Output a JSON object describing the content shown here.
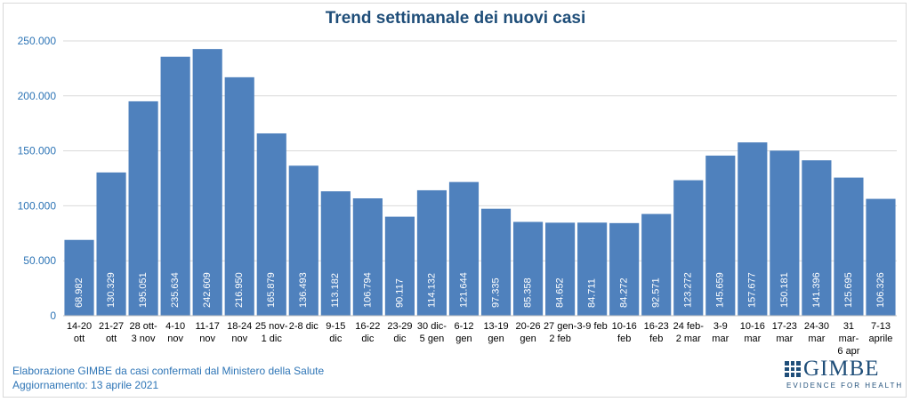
{
  "chart_data": {
    "type": "bar",
    "title": "Trend settimanale dei nuovi casi",
    "xlabel": "",
    "ylabel": "",
    "ylim": [
      0,
      250000
    ],
    "y_ticks": [
      "0",
      "50.000",
      "100.000",
      "150.000",
      "200.000",
      "250.000"
    ],
    "grid": true,
    "bar_color": "#4f81bd",
    "categories": [
      [
        "14-20",
        "ott"
      ],
      [
        "21-27",
        "ott"
      ],
      [
        "28 ott-",
        "3 nov"
      ],
      [
        "4-10",
        "nov"
      ],
      [
        "11-17",
        "nov"
      ],
      [
        "18-24",
        "nov"
      ],
      [
        "25 nov-",
        "1 dic"
      ],
      [
        "2-8 dic"
      ],
      [
        "9-15",
        "dic"
      ],
      [
        "16-22",
        "dic"
      ],
      [
        "23-29",
        "dic"
      ],
      [
        "30 dic-",
        "5 gen"
      ],
      [
        "6-12",
        "gen"
      ],
      [
        "13-19",
        "gen"
      ],
      [
        "20-26",
        "gen"
      ],
      [
        "27 gen-",
        "2 feb"
      ],
      [
        "3-9 feb"
      ],
      [
        "10-16",
        "feb"
      ],
      [
        "16-23",
        "feb"
      ],
      [
        "24 feb-",
        "2 mar"
      ],
      [
        "3-9",
        "mar"
      ],
      [
        "10-16",
        "mar"
      ],
      [
        "17-23",
        "mar"
      ],
      [
        "24-30",
        "mar"
      ],
      [
        "31",
        "mar-",
        "6 apr"
      ],
      [
        "7-13",
        "aprile"
      ]
    ],
    "values": [
      68982,
      130329,
      195051,
      235634,
      242609,
      216950,
      165879,
      136493,
      113182,
      106794,
      90117,
      114132,
      121644,
      97335,
      85358,
      84652,
      84711,
      84272,
      92571,
      123272,
      145659,
      157677,
      150181,
      141396,
      125695,
      106326
    ],
    "value_labels": [
      "68.982",
      "130.329",
      "195.051",
      "235.634",
      "242.609",
      "216.950",
      "165.879",
      "136.493",
      "113.182",
      "106.794",
      "90.117",
      "114.132",
      "121.644",
      "97.335",
      "85.358",
      "84.652",
      "84.711",
      "84.272",
      "92.571",
      "123.272",
      "145.659",
      "157.677",
      "150.181",
      "141.396",
      "125.695",
      "106.326"
    ]
  },
  "footer": {
    "line1": "Elaborazione GIMBE da casi confermati dal Ministero della Salute",
    "line2": "Aggiornamento: 13 aprile 2021"
  },
  "logo": {
    "word": "GIMBE",
    "tagline": "EVIDENCE FOR HEALTH"
  },
  "colors": {
    "title": "#1f4e79",
    "bar": "#4f81bd",
    "axis_labels": "#2e75b6",
    "category_labels": "#000000"
  }
}
